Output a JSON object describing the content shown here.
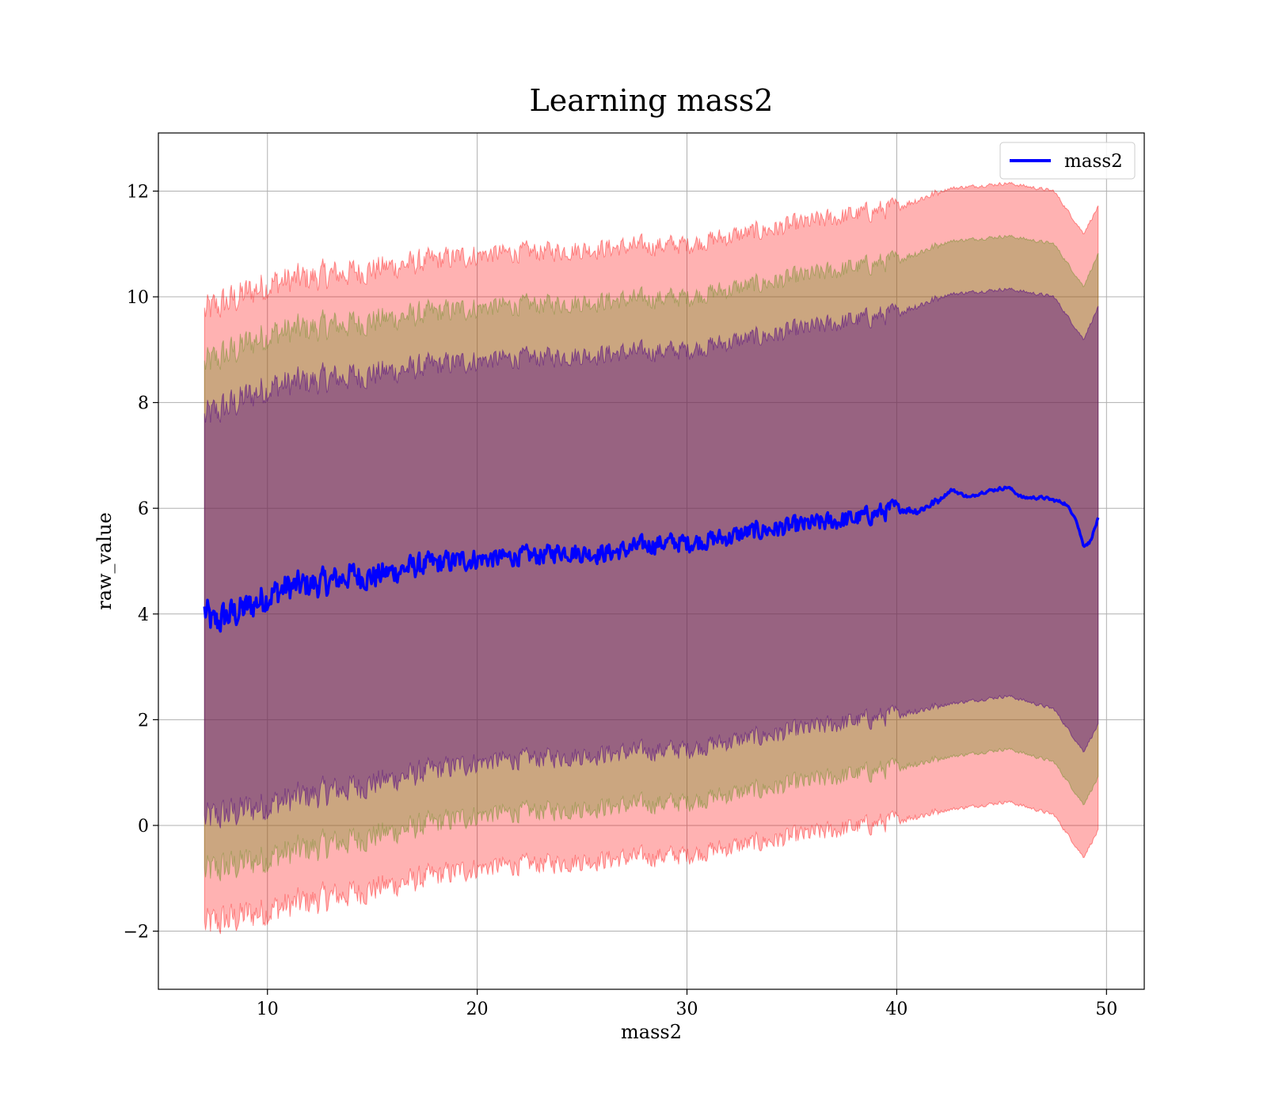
{
  "chart_data": {
    "type": "line",
    "title": "Learning mass2",
    "xlabel": "mass2",
    "ylabel": "raw_value",
    "xlim": [
      4.8,
      51.8
    ],
    "ylim": [
      -3.1,
      13.1
    ],
    "x_ticks": [
      10,
      20,
      30,
      40,
      50
    ],
    "y_ticks": [
      -2,
      0,
      2,
      4,
      6,
      8,
      10,
      12
    ],
    "grid": true,
    "legend_position": "top-right",
    "x_range": [
      7.0,
      49.6
    ],
    "series": [
      {
        "name": "mass2",
        "color": "#0000ff",
        "knots": [
          [
            7.0,
            4.05
          ],
          [
            7.4,
            3.8
          ],
          [
            8.0,
            3.95
          ],
          [
            9.0,
            4.1
          ],
          [
            10.0,
            4.35
          ],
          [
            11.0,
            4.5
          ],
          [
            12.0,
            4.55
          ],
          [
            13.0,
            4.6
          ],
          [
            14.0,
            4.75
          ],
          [
            15.0,
            4.7
          ],
          [
            16.0,
            4.8
          ],
          [
            17.0,
            4.9
          ],
          [
            18.0,
            4.95
          ],
          [
            19.0,
            5.0
          ],
          [
            20.0,
            5.05
          ],
          [
            21.0,
            5.05
          ],
          [
            22.0,
            5.1
          ],
          [
            23.0,
            5.1
          ],
          [
            24.0,
            5.2
          ],
          [
            25.0,
            5.15
          ],
          [
            26.0,
            5.15
          ],
          [
            27.0,
            5.2
          ],
          [
            28.0,
            5.3
          ],
          [
            29.0,
            5.35
          ],
          [
            30.0,
            5.35
          ],
          [
            31.0,
            5.4
          ],
          [
            32.0,
            5.45
          ],
          [
            33.0,
            5.55
          ],
          [
            34.0,
            5.6
          ],
          [
            35.0,
            5.65
          ],
          [
            36.0,
            5.7
          ],
          [
            37.0,
            5.75
          ],
          [
            38.0,
            5.8
          ],
          [
            39.0,
            5.9
          ],
          [
            40.0,
            6.0
          ],
          [
            41.0,
            5.95
          ],
          [
            42.0,
            6.15
          ],
          [
            42.6,
            6.35
          ],
          [
            43.5,
            6.2
          ],
          [
            44.0,
            6.3
          ],
          [
            45.3,
            6.4
          ],
          [
            46.0,
            6.2
          ],
          [
            47.0,
            6.2
          ],
          [
            48.0,
            6.1
          ],
          [
            48.5,
            5.85
          ],
          [
            48.9,
            5.3
          ],
          [
            49.2,
            5.35
          ],
          [
            49.6,
            5.8
          ]
        ]
      }
    ],
    "bands": [
      {
        "color": "#ff0000",
        "opacity": 0.3,
        "upper_knots": [
          [
            7.0,
            9.7
          ],
          [
            10.0,
            10.25
          ],
          [
            20.0,
            10.8
          ],
          [
            30.0,
            11.0
          ],
          [
            40.0,
            11.7
          ],
          [
            42.5,
            12.05
          ],
          [
            45.3,
            12.15
          ],
          [
            47.5,
            12.0
          ],
          [
            48.9,
            11.2
          ],
          [
            49.6,
            11.7
          ]
        ],
        "lower_knots": [
          [
            7.0,
            -1.9
          ],
          [
            10.0,
            -1.6
          ],
          [
            20.0,
            -0.8
          ],
          [
            30.0,
            -0.55
          ],
          [
            40.0,
            0.1
          ],
          [
            42.5,
            0.3
          ],
          [
            45.3,
            0.45
          ],
          [
            47.5,
            0.2
          ],
          [
            48.9,
            -0.6
          ],
          [
            49.6,
            -0.1
          ]
        ]
      },
      {
        "color": "#6b8e23",
        "opacity": 0.35,
        "upper_knots": [
          [
            7.0,
            8.7
          ],
          [
            10.0,
            9.3
          ],
          [
            20.0,
            9.8
          ],
          [
            30.0,
            10.0
          ],
          [
            40.0,
            10.7
          ],
          [
            42.5,
            11.05
          ],
          [
            45.3,
            11.15
          ],
          [
            47.5,
            11.0
          ],
          [
            48.9,
            10.2
          ],
          [
            49.6,
            10.8
          ]
        ],
        "lower_knots": [
          [
            7.0,
            -0.9
          ],
          [
            10.0,
            -0.6
          ],
          [
            20.0,
            0.2
          ],
          [
            30.0,
            0.45
          ],
          [
            40.0,
            1.1
          ],
          [
            42.5,
            1.3
          ],
          [
            45.3,
            1.45
          ],
          [
            47.5,
            1.2
          ],
          [
            48.9,
            0.4
          ],
          [
            49.6,
            0.9
          ]
        ]
      },
      {
        "color": "#4b0082",
        "opacity": 0.4,
        "upper_knots": [
          [
            7.0,
            7.7
          ],
          [
            10.0,
            8.3
          ],
          [
            20.0,
            8.8
          ],
          [
            30.0,
            9.0
          ],
          [
            40.0,
            9.7
          ],
          [
            42.5,
            10.05
          ],
          [
            45.3,
            10.15
          ],
          [
            47.5,
            10.0
          ],
          [
            48.9,
            9.2
          ],
          [
            49.6,
            9.8
          ]
        ],
        "lower_knots": [
          [
            7.0,
            0.1
          ],
          [
            10.0,
            0.4
          ],
          [
            20.0,
            1.2
          ],
          [
            30.0,
            1.45
          ],
          [
            40.0,
            2.1
          ],
          [
            42.5,
            2.3
          ],
          [
            45.3,
            2.45
          ],
          [
            47.5,
            2.2
          ],
          [
            48.9,
            1.4
          ],
          [
            49.6,
            1.9
          ]
        ]
      }
    ]
  }
}
